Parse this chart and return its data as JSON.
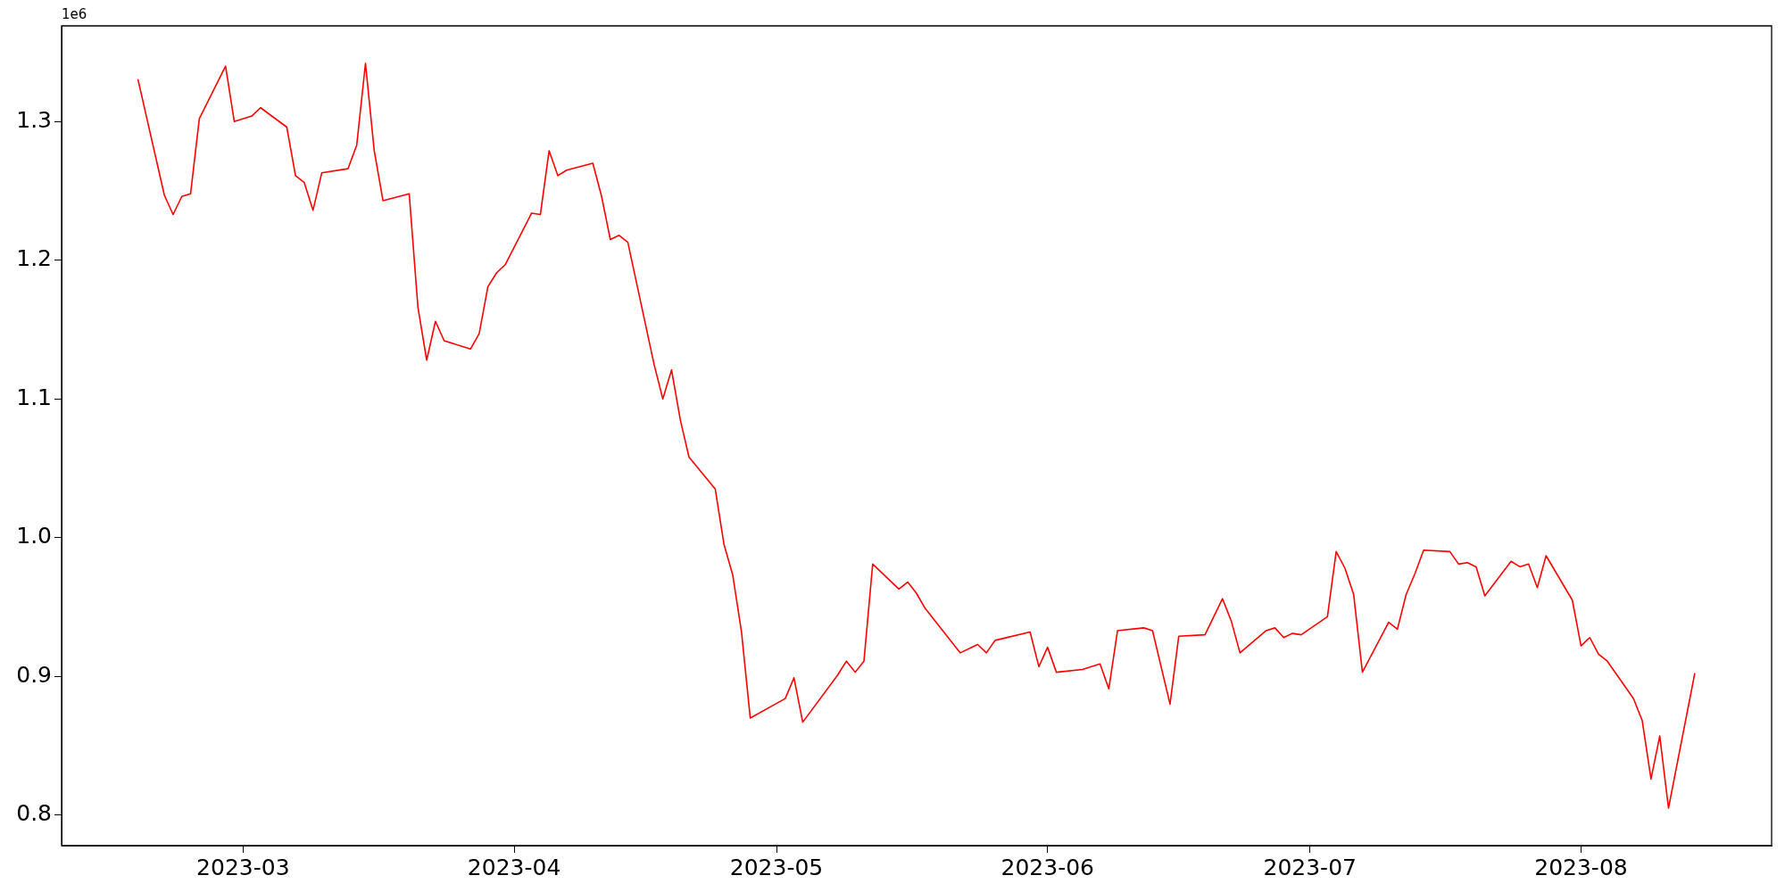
{
  "chart_data": {
    "type": "line",
    "x": [
      "2023-02-17",
      "2023-02-20",
      "2023-02-21",
      "2023-02-22",
      "2023-02-23",
      "2023-02-24",
      "2023-02-27",
      "2023-02-28",
      "2023-03-02",
      "2023-03-03",
      "2023-03-06",
      "2023-03-07",
      "2023-03-08",
      "2023-03-09",
      "2023-03-10",
      "2023-03-13",
      "2023-03-14",
      "2023-03-15",
      "2023-03-16",
      "2023-03-17",
      "2023-03-20",
      "2023-03-21",
      "2023-03-22",
      "2023-03-23",
      "2023-03-24",
      "2023-03-27",
      "2023-03-28",
      "2023-03-29",
      "2023-03-30",
      "2023-03-31",
      "2023-04-03",
      "2023-04-04",
      "2023-04-05",
      "2023-04-06",
      "2023-04-07",
      "2023-04-10",
      "2023-04-11",
      "2023-04-12",
      "2023-04-13",
      "2023-04-14",
      "2023-04-17",
      "2023-04-18",
      "2023-04-19",
      "2023-04-20",
      "2023-04-21",
      "2023-04-24",
      "2023-04-25",
      "2023-04-26",
      "2023-04-27",
      "2023-04-28",
      "2023-05-02",
      "2023-05-03",
      "2023-05-04",
      "2023-05-08",
      "2023-05-09",
      "2023-05-10",
      "2023-05-11",
      "2023-05-12",
      "2023-05-15",
      "2023-05-16",
      "2023-05-17",
      "2023-05-18",
      "2023-05-22",
      "2023-05-23",
      "2023-05-24",
      "2023-05-25",
      "2023-05-26",
      "2023-05-30",
      "2023-05-31",
      "2023-06-01",
      "2023-06-02",
      "2023-06-05",
      "2023-06-07",
      "2023-06-08",
      "2023-06-09",
      "2023-06-12",
      "2023-06-13",
      "2023-06-15",
      "2023-06-16",
      "2023-06-19",
      "2023-06-21",
      "2023-06-22",
      "2023-06-23",
      "2023-06-26",
      "2023-06-27",
      "2023-06-28",
      "2023-06-29",
      "2023-06-30",
      "2023-07-03",
      "2023-07-04",
      "2023-07-05",
      "2023-07-06",
      "2023-07-07",
      "2023-07-10",
      "2023-07-11",
      "2023-07-12",
      "2023-07-13",
      "2023-07-14",
      "2023-07-17",
      "2023-07-18",
      "2023-07-19",
      "2023-07-20",
      "2023-07-21",
      "2023-07-24",
      "2023-07-25",
      "2023-07-26",
      "2023-07-27",
      "2023-07-28",
      "2023-07-31",
      "2023-08-01",
      "2023-08-02",
      "2023-08-03",
      "2023-08-04",
      "2023-08-07",
      "2023-08-08",
      "2023-08-09",
      "2023-08-10",
      "2023-08-11",
      "2023-08-14"
    ],
    "series": [
      {
        "color": "#ff0000",
        "values": [
          1.33,
          1.247,
          1.233,
          1.246,
          1.248,
          1.302,
          1.34,
          1.3,
          1.304,
          1.31,
          1.296,
          1.261,
          1.256,
          1.236,
          1.263,
          1.266,
          1.283,
          1.342,
          1.279,
          1.243,
          1.248,
          1.166,
          1.128,
          1.156,
          1.142,
          1.136,
          1.147,
          1.181,
          1.191,
          1.197,
          1.234,
          1.233,
          1.279,
          1.261,
          1.265,
          1.27,
          1.246,
          1.215,
          1.218,
          1.213,
          1.125,
          1.1,
          1.121,
          1.085,
          1.058,
          1.035,
          0.995,
          0.973,
          0.932,
          0.87,
          0.884,
          0.899,
          0.867,
          0.901,
          0.911,
          0.903,
          0.911,
          0.981,
          0.963,
          0.968,
          0.96,
          0.949,
          0.917,
          0.92,
          0.923,
          0.917,
          0.926,
          0.932,
          0.907,
          0.921,
          0.903,
          0.905,
          0.909,
          0.891,
          0.933,
          0.935,
          0.933,
          0.88,
          0.929,
          0.93,
          0.956,
          0.94,
          0.917,
          0.933,
          0.935,
          0.928,
          0.931,
          0.93,
          0.943,
          0.99,
          0.978,
          0.959,
          0.903,
          0.939,
          0.934,
          0.959,
          0.974,
          0.991,
          0.99,
          0.981,
          0.982,
          0.979,
          0.958,
          0.983,
          0.979,
          0.981,
          0.964,
          0.987,
          0.955,
          0.922,
          0.928,
          0.916,
          0.911,
          0.884,
          0.868,
          0.826,
          0.857,
          0.805,
          0.902
        ]
      }
    ],
    "xlim": [
      "2023-02-08T06:00",
      "2023-08-22T19:00"
    ],
    "xticks": [
      "2023-03",
      "2023-04",
      "2023-05",
      "2023-06",
      "2023-07",
      "2023-08"
    ],
    "ylim": [
      0.778,
      1.369
    ],
    "yticks": [
      {
        "value": 0.8,
        "label": "0.8"
      },
      {
        "value": 0.9,
        "label": "0.9"
      },
      {
        "value": 1.0,
        "label": "1.0"
      },
      {
        "value": 1.1,
        "label": "1.1"
      },
      {
        "value": 1.2,
        "label": "1.2"
      },
      {
        "value": 1.3,
        "label": "1.3"
      }
    ],
    "annotations": [
      "1e6"
    ],
    "grid": false,
    "legend": false,
    "marker": "none",
    "line_style": "solid"
  }
}
